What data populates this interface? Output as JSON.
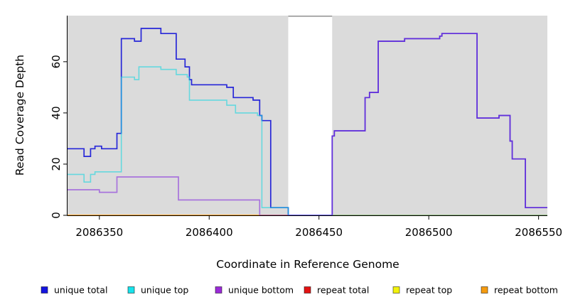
{
  "chart_data": {
    "type": "line",
    "subtype": "step-coverage",
    "title": "",
    "xlabel": "Coordinate in Reference Genome",
    "ylabel": "Read Coverage Depth",
    "xlim": [
      2086335.5,
      2086554
    ],
    "ylim": [
      0,
      78
    ],
    "xticks": [
      2086350,
      2086400,
      2086450,
      2086500,
      2086550
    ],
    "xtick_labels": [
      "2086350",
      "2086400",
      "2086450",
      "2086500",
      "2086550"
    ],
    "yticks": [
      0,
      20,
      40,
      60
    ],
    "ytick_labels": [
      "0",
      "20",
      "40",
      "60"
    ],
    "grid": false,
    "plot_background": "#DBDBDB",
    "no_data_region": {
      "x_start": 2086436,
      "x_end": 2086456,
      "fill": "#FFFFFF",
      "top_border": "#8F8F8F"
    },
    "legend": {
      "position": "bottom",
      "entries": [
        {
          "label": "unique total",
          "color": "#1414E0"
        },
        {
          "label": "unique top",
          "color": "#17E3EC"
        },
        {
          "label": "unique bottom",
          "color": "#9B2BD8"
        },
        {
          "label": "repeat total",
          "color": "#E31212"
        },
        {
          "label": "repeat top",
          "color": "#F2F20C"
        },
        {
          "label": "repeat bottom",
          "color": "#F59B0F"
        }
      ]
    },
    "series": [
      {
        "name": "repeat total",
        "color": "#DD2222",
        "alpha": 1,
        "width": 1.5,
        "steps": [
          [
            2086335.5,
            0
          ],
          [
            2086554,
            0
          ]
        ]
      },
      {
        "name": "repeat top",
        "color": "#EFEF1A",
        "alpha": 1,
        "width": 1.5,
        "steps": [
          [
            2086335.5,
            0
          ],
          [
            2086554,
            0
          ]
        ]
      },
      {
        "name": "repeat bottom",
        "color": "#FF9D20",
        "alpha": 1,
        "width": 1.5,
        "steps": [
          [
            2086335.5,
            0
          ],
          [
            2086554,
            0
          ]
        ]
      },
      {
        "name": "unique total",
        "color": "#2727D8",
        "alpha": 1,
        "width": 1.7,
        "steps": [
          [
            2086335.5,
            26
          ],
          [
            2086343,
            23
          ],
          [
            2086346,
            26
          ],
          [
            2086348,
            27
          ],
          [
            2086351,
            26
          ],
          [
            2086358,
            32
          ],
          [
            2086360,
            69
          ],
          [
            2086366,
            68
          ],
          [
            2086369,
            73
          ],
          [
            2086378,
            71
          ],
          [
            2086385,
            61
          ],
          [
            2086389,
            58
          ],
          [
            2086391,
            53
          ],
          [
            2086392,
            51
          ],
          [
            2086408,
            50
          ],
          [
            2086411,
            46
          ],
          [
            2086420,
            45
          ],
          [
            2086423,
            39
          ],
          [
            2086424,
            37
          ],
          [
            2086428,
            3
          ],
          [
            2086436,
            0
          ],
          [
            2086456,
            31
          ],
          [
            2086457,
            33
          ],
          [
            2086471,
            46
          ],
          [
            2086473,
            48
          ],
          [
            2086477,
            68
          ],
          [
            2086489,
            69
          ],
          [
            2086505,
            70
          ],
          [
            2086506,
            71
          ],
          [
            2086522,
            38
          ],
          [
            2086532,
            39
          ],
          [
            2086537,
            29
          ],
          [
            2086538,
            22
          ],
          [
            2086544,
            3
          ],
          [
            2086554,
            3
          ]
        ]
      },
      {
        "name": "unique top",
        "color": "#1ED6E0",
        "alpha": 0.62,
        "width": 1.6,
        "steps": [
          [
            2086335.5,
            16
          ],
          [
            2086343,
            13
          ],
          [
            2086346,
            16
          ],
          [
            2086348,
            17
          ],
          [
            2086360,
            54
          ],
          [
            2086366,
            53
          ],
          [
            2086368,
            58
          ],
          [
            2086378,
            57
          ],
          [
            2086385,
            55
          ],
          [
            2086390,
            54
          ],
          [
            2086391,
            45
          ],
          [
            2086408,
            43
          ],
          [
            2086412,
            40
          ],
          [
            2086422,
            39
          ],
          [
            2086424,
            3
          ],
          [
            2086436,
            0
          ],
          [
            2086554,
            0
          ]
        ]
      },
      {
        "name": "unique bottom",
        "color": "#8833DD",
        "alpha": 0.62,
        "width": 1.7,
        "steps": [
          [
            2086335.5,
            10
          ],
          [
            2086350,
            9
          ],
          [
            2086358,
            15
          ],
          [
            2086386,
            6
          ],
          [
            2086423,
            0
          ],
          [
            2086456,
            31
          ],
          [
            2086457,
            33
          ],
          [
            2086471,
            46
          ],
          [
            2086473,
            48
          ],
          [
            2086477,
            68
          ],
          [
            2086489,
            69
          ],
          [
            2086505,
            70
          ],
          [
            2086506,
            71
          ],
          [
            2086522,
            38
          ],
          [
            2086532,
            39
          ],
          [
            2086537,
            29
          ],
          [
            2086538,
            22
          ],
          [
            2086544,
            3
          ],
          [
            2086554,
            3
          ]
        ]
      }
    ]
  }
}
